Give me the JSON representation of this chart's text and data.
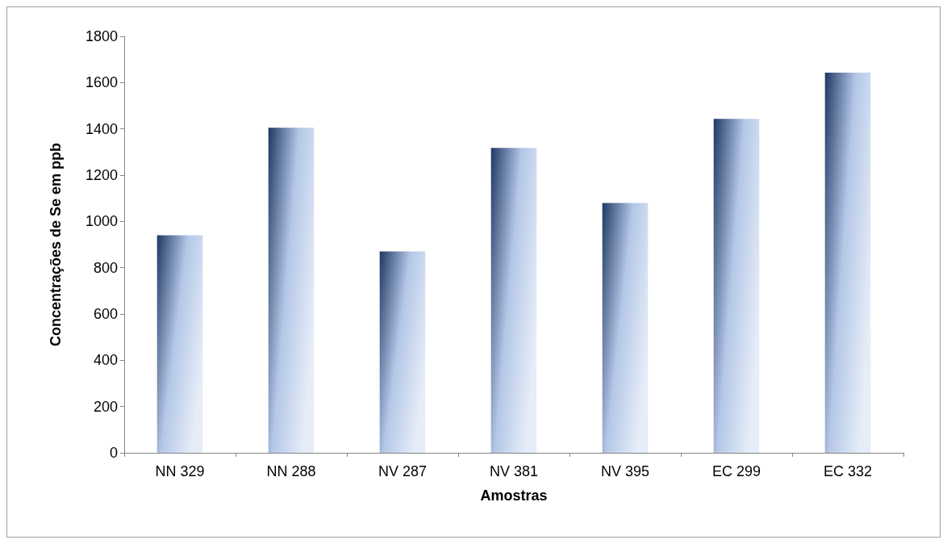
{
  "chart_data": {
    "type": "bar",
    "xlabel": "Amostras",
    "ylabel": "Concentrações de Se em ppb",
    "categories": [
      "NN 329",
      "NN 288",
      "NV 287",
      "NV 381",
      "NV 395",
      "EC 299",
      "EC 332"
    ],
    "values": [
      940,
      1405,
      870,
      1318,
      1080,
      1443,
      1643
    ],
    "color": "#b4c7e7",
    "ylim": [
      0,
      1800
    ],
    "yticks": [
      0,
      200,
      400,
      600,
      800,
      1000,
      1200,
      1400,
      1600,
      1800
    ],
    "grid": false
  }
}
